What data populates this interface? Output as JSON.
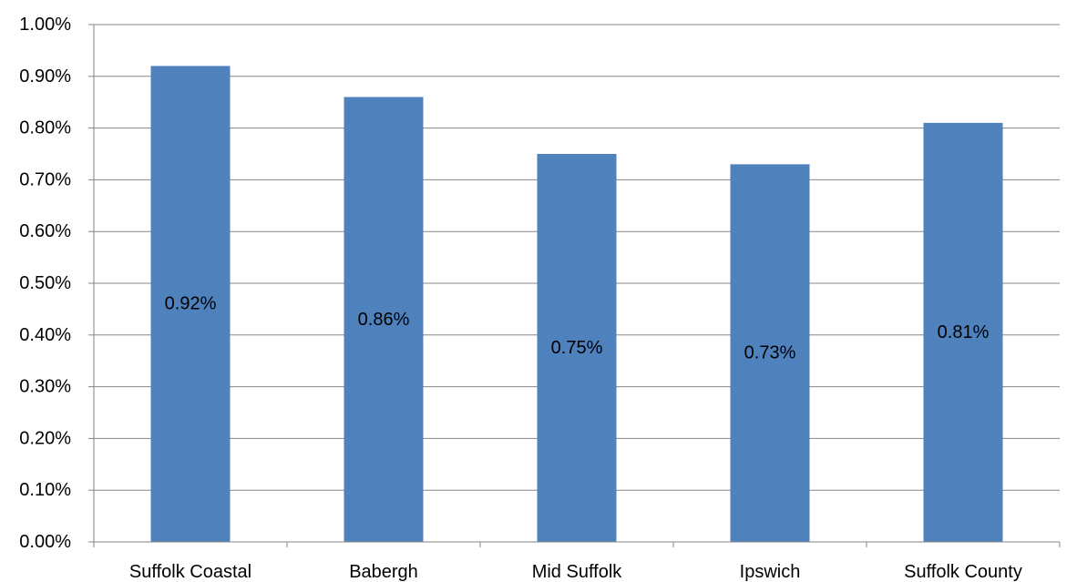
{
  "chart_data": {
    "type": "bar",
    "categories": [
      "Suffolk Coastal",
      "Babergh",
      "Mid Suffolk",
      "Ipswich",
      "Suffolk County"
    ],
    "values": [
      0.92,
      0.86,
      0.75,
      0.73,
      0.81
    ],
    "data_labels": [
      "0.92%",
      "0.86%",
      "0.75%",
      "0.73%",
      "0.81%"
    ],
    "ylim": [
      0,
      1.0
    ],
    "yticks": [
      0,
      0.1,
      0.2,
      0.3,
      0.4,
      0.5,
      0.6,
      0.7,
      0.8,
      0.9,
      1.0
    ],
    "ytick_labels": [
      "0.00%",
      "0.10%",
      "0.20%",
      "0.30%",
      "0.40%",
      "0.50%",
      "0.60%",
      "0.70%",
      "0.80%",
      "0.90%",
      "1.00%"
    ],
    "grid": true,
    "bar_color": "#4F81BD",
    "grid_color": "#868686",
    "title": "",
    "xlabel": "",
    "ylabel": ""
  }
}
